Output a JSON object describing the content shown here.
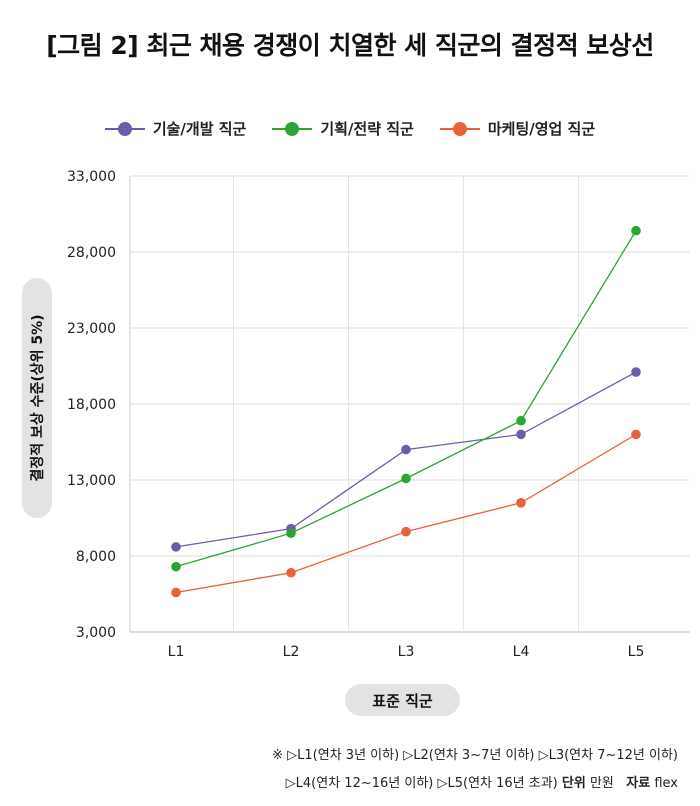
{
  "chart_data": {
    "type": "line",
    "title": "[그림 2] 최근 채용 경쟁이 치열한 세 직군의 결정적 보상선",
    "xlabel": "표준 직군",
    "ylabel": "결정적 보상 수준(상위 5%)",
    "categories": [
      "L1",
      "L2",
      "L3",
      "L4",
      "L5"
    ],
    "ylim": [
      3000,
      33000
    ],
    "yticks": [
      "3,000",
      "8,000",
      "13,000",
      "18,000",
      "23,000",
      "28,000",
      "33,000"
    ],
    "ytick_values": [
      3000,
      8000,
      13000,
      18000,
      23000,
      28000,
      33000
    ],
    "grid": true,
    "legend": "top-center",
    "series": [
      {
        "name": "기술/개발 직군",
        "color": "#6b5ea8",
        "values": [
          8600,
          9800,
          15000,
          16000,
          20100
        ]
      },
      {
        "name": "기획/전략 직군",
        "color": "#2ea336",
        "values": [
          7300,
          9500,
          13100,
          16900,
          29400
        ]
      },
      {
        "name": "마케팅/영업 직군",
        "color": "#e8603c",
        "values": [
          5600,
          6900,
          9600,
          11500,
          16000
        ]
      }
    ]
  },
  "notes": {
    "line1": "※ ▷L1(연차 3년 이하) ▷L2(연차 3~7년 이하) ▷L3(연차 7~12년 이하)",
    "line2_text": "▷L4(연차 12~16년 이하) ▷L5(연차 16년 초과)",
    "unit_label": "단위",
    "unit_value": "만원",
    "source_label": "자료",
    "source_value": "flex"
  }
}
